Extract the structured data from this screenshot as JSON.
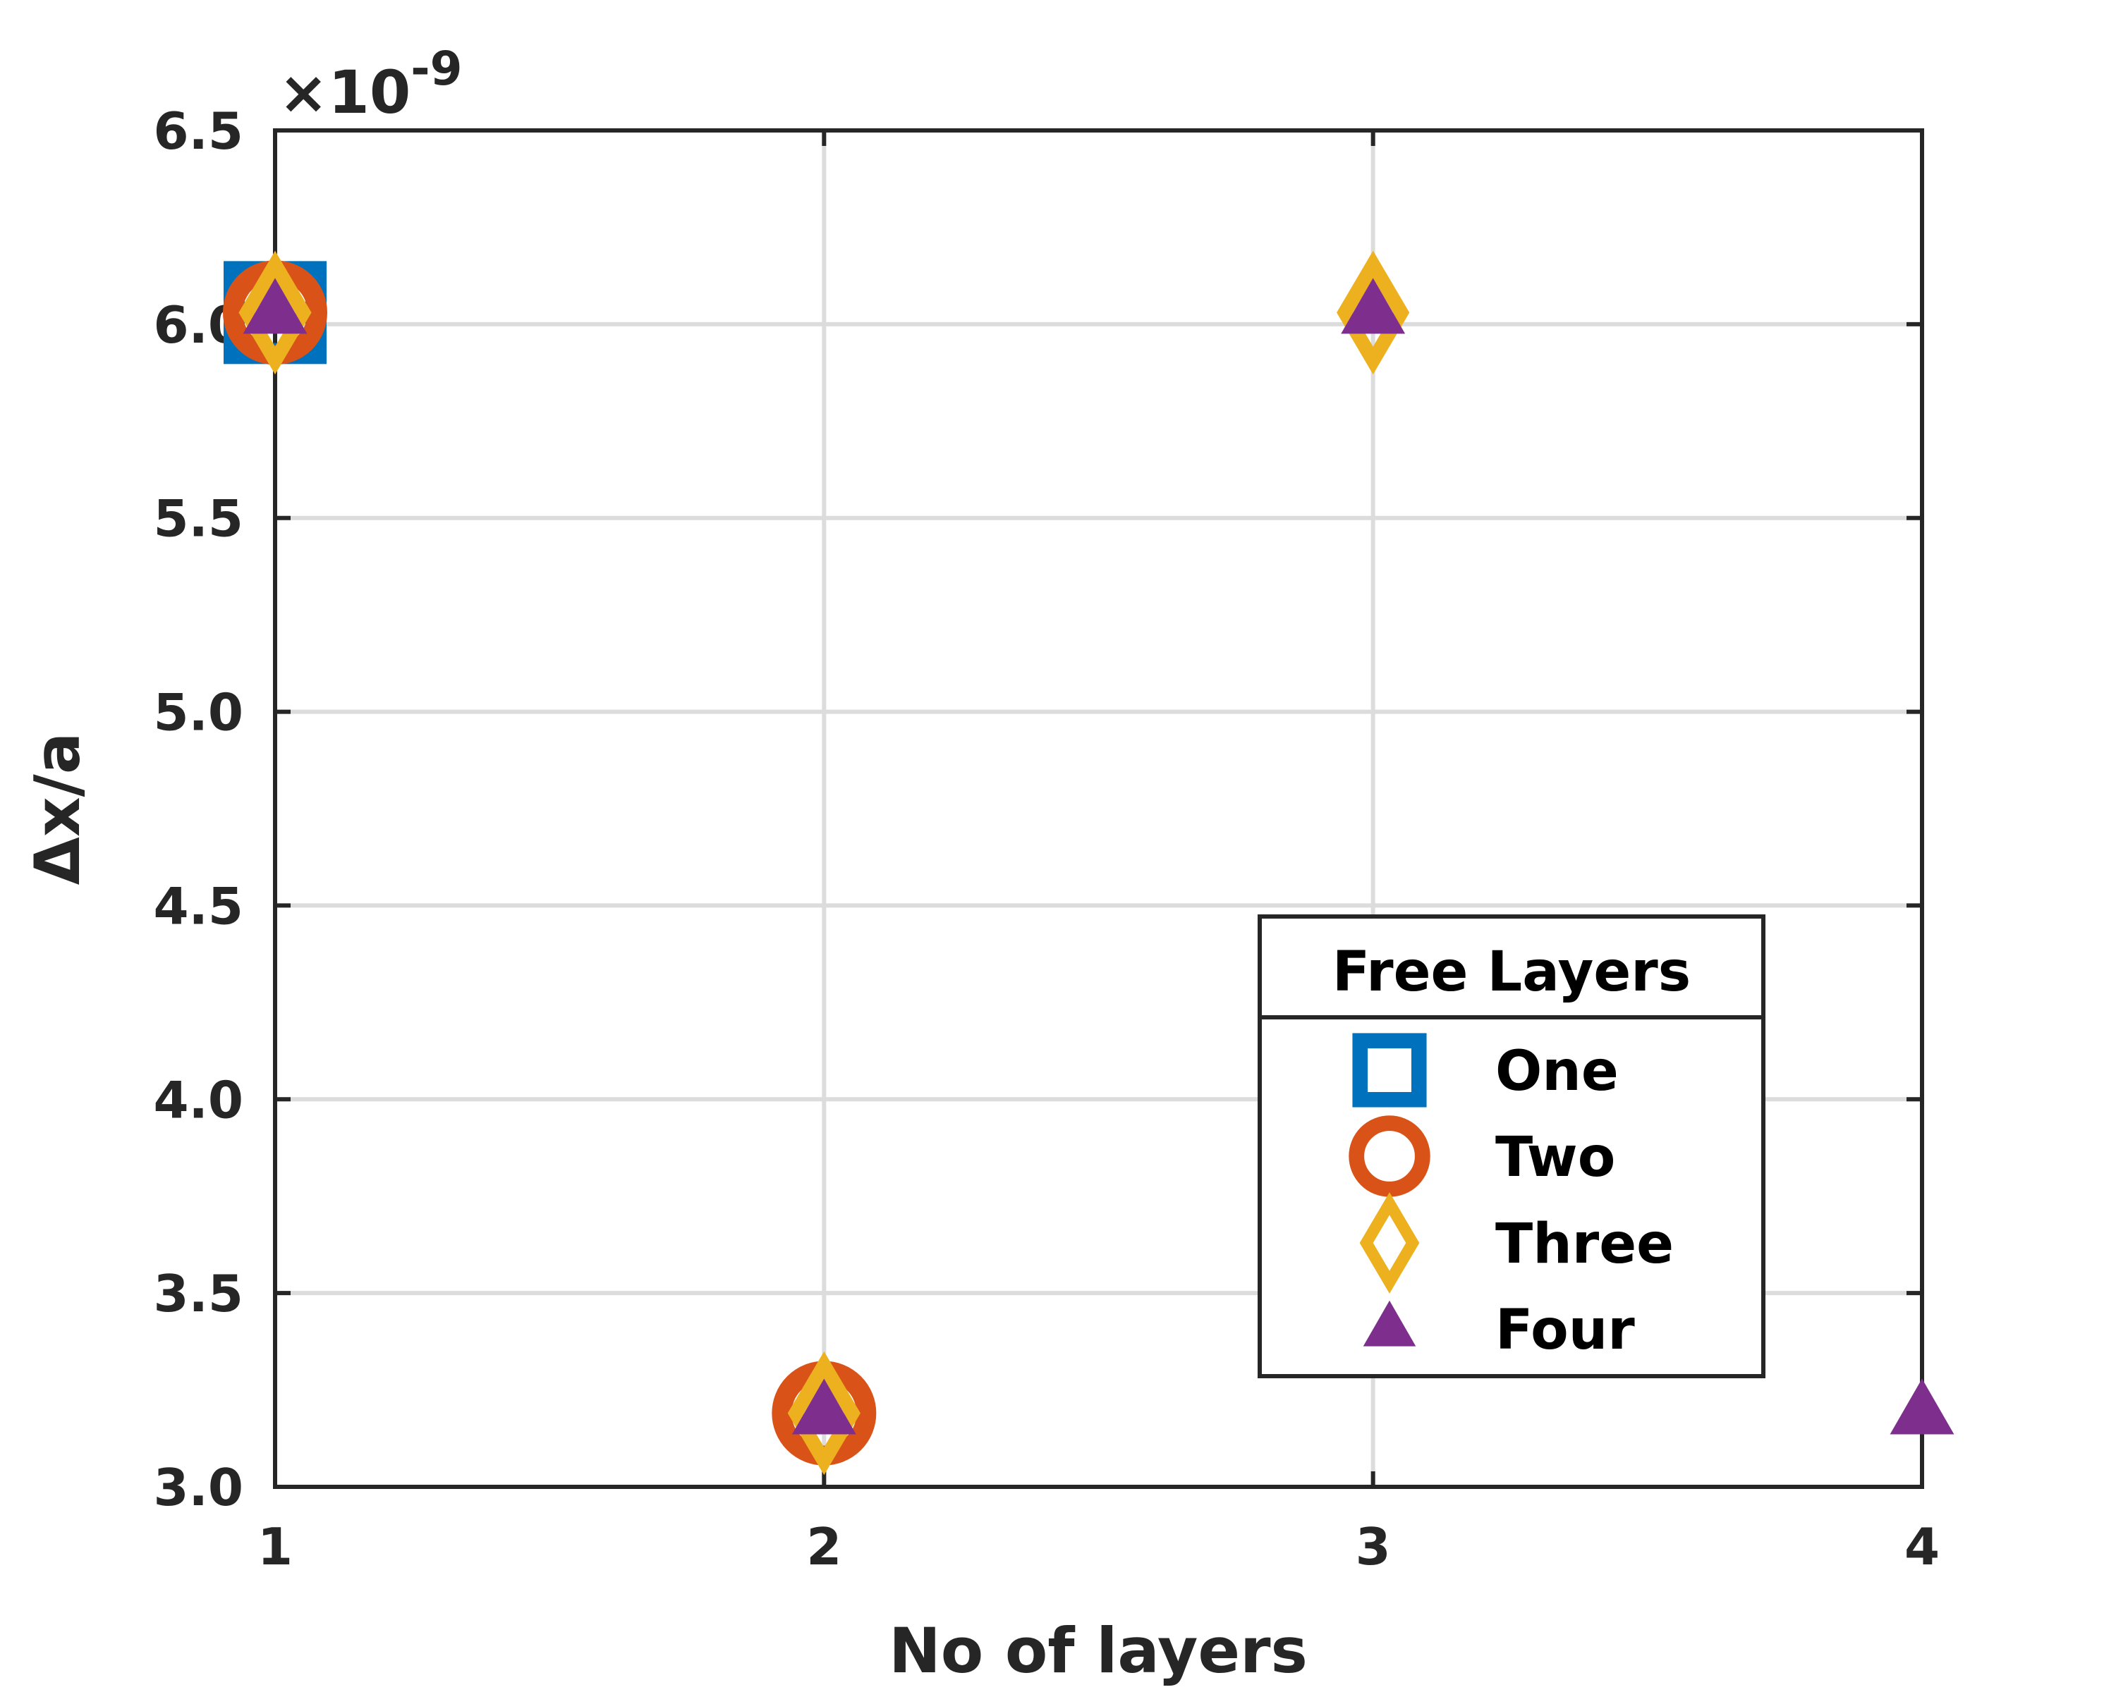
{
  "chart_data": {
    "type": "scatter",
    "xlabel": "No of layers",
    "ylabel": "Δx/a",
    "exponent_label": "×10",
    "exponent_power": "-9",
    "xlim": [
      1,
      4
    ],
    "ylim": [
      3.0,
      6.5
    ],
    "x_ticks": [
      "1",
      "2",
      "3",
      "4"
    ],
    "y_ticks": [
      "3.0",
      "3.5",
      "4.0",
      "4.5",
      "5.0",
      "5.5",
      "6.0",
      "6.5"
    ],
    "grid": true,
    "legend": {
      "title": "Free Layers",
      "placement": "lower-right"
    },
    "series": [
      {
        "name": "One",
        "marker": "square",
        "color": "#0072BD",
        "x": [
          1
        ],
        "y": [
          6.03
        ]
      },
      {
        "name": "Two",
        "marker": "circle",
        "color": "#D95319",
        "x": [
          1,
          2
        ],
        "y": [
          6.03,
          3.19
        ]
      },
      {
        "name": "Three",
        "marker": "diamond",
        "color": "#EDB120",
        "x": [
          1,
          2,
          3
        ],
        "y": [
          6.03,
          3.19,
          6.03
        ]
      },
      {
        "name": "Four",
        "marker": "triangle",
        "color": "#7E2F8E",
        "x": [
          1,
          2,
          3,
          4
        ],
        "y": [
          6.03,
          3.19,
          6.03,
          3.19
        ]
      }
    ]
  }
}
